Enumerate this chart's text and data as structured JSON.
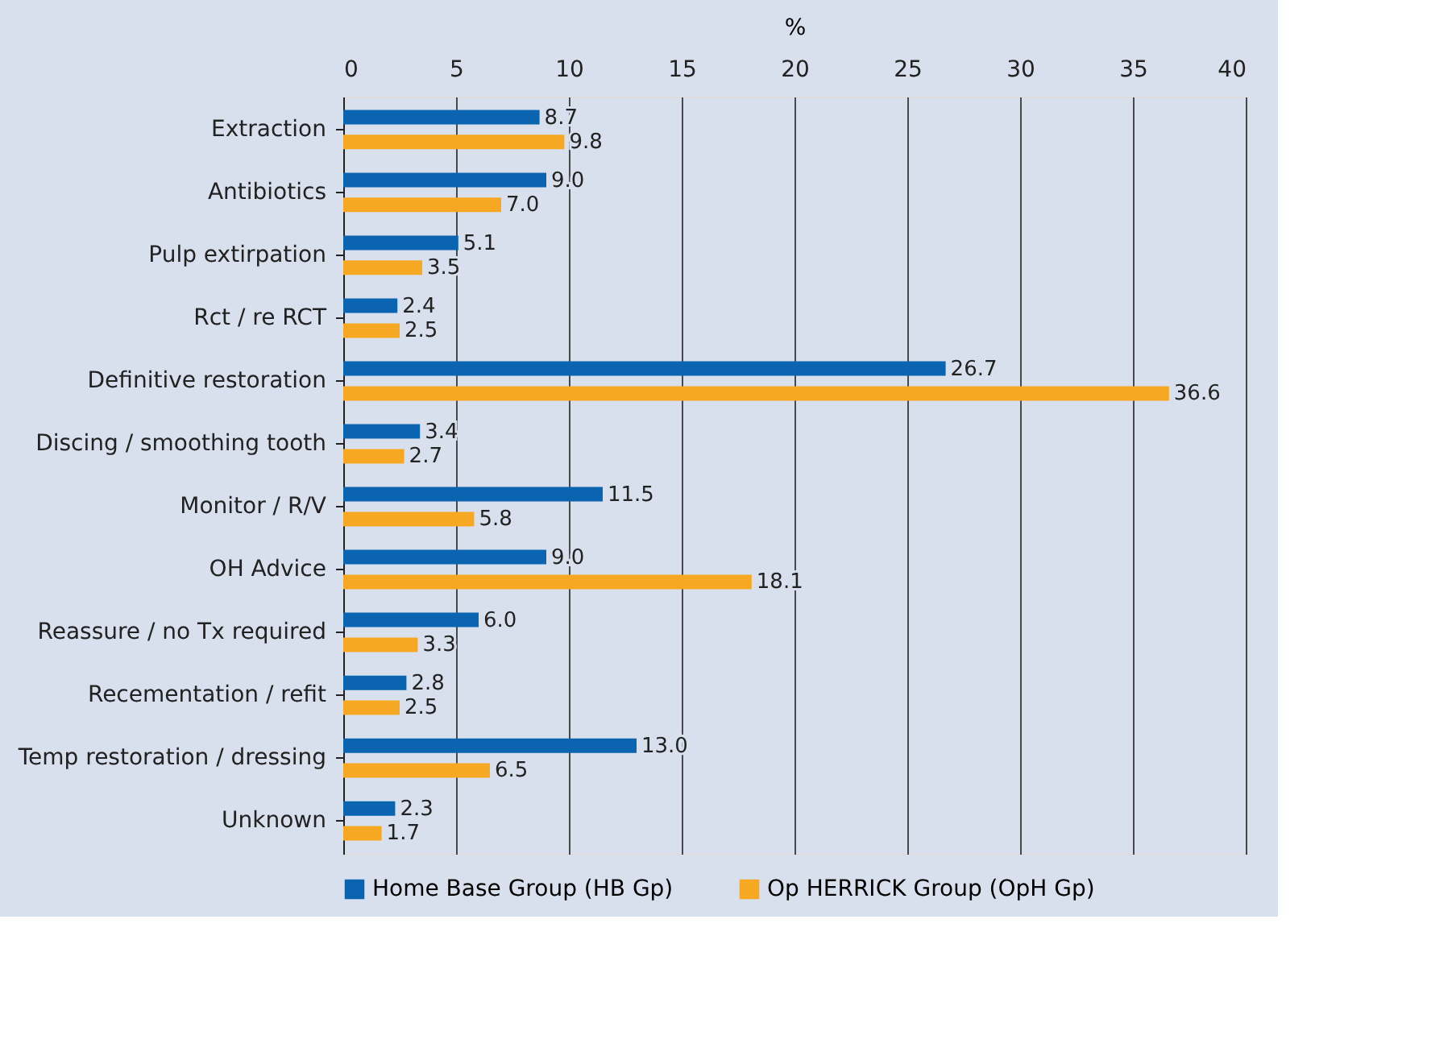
{
  "chart_data": {
    "type": "bar",
    "orientation": "horizontal",
    "xlabel": "%",
    "categories": [
      "Extraction",
      "Antibiotics",
      "Pulp extirpation",
      "Rct / re RCT",
      "Definitive restoration",
      "Discing / smoothing tooth",
      "Monitor / R/V",
      "OH Advice",
      "Reassure / no Tx required",
      "Recementation / refit",
      "Temp restoration / dressing",
      "Unknown"
    ],
    "series": [
      {
        "name": "Home Base Group (HB Gp)",
        "color": "#0a64b0",
        "values": [
          8.7,
          9.0,
          5.1,
          2.4,
          26.7,
          3.4,
          11.5,
          9.0,
          6.0,
          2.8,
          13.0,
          2.3
        ],
        "value_labels": [
          "8.7",
          "9.0",
          "5.1",
          "2.4",
          "26.7",
          "3.4",
          "11.5",
          "9.0",
          "6.0",
          "2.8",
          "13.0",
          "2.3"
        ]
      },
      {
        "name": "Op HERRICK Group (OpH Gp)",
        "color": "#f7a823",
        "values": [
          9.8,
          7.0,
          3.5,
          2.5,
          36.6,
          2.7,
          5.8,
          18.1,
          3.3,
          2.5,
          6.5,
          1.7
        ],
        "value_labels": [
          "9.8",
          "7.0",
          "3.5",
          "2.5",
          "36.6",
          "2.7",
          "5.8",
          "18.1",
          "3.3",
          "2.5",
          "6.5",
          "1.7"
        ]
      }
    ],
    "xlim": [
      0,
      40
    ],
    "xticks": [
      0,
      5,
      10,
      15,
      20,
      25,
      30,
      35,
      40
    ],
    "grid": "x",
    "legend": "bottom"
  }
}
